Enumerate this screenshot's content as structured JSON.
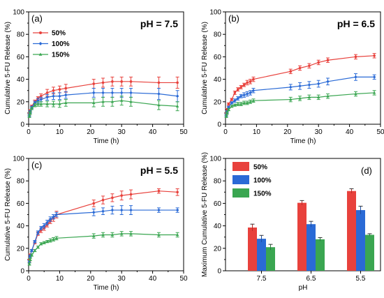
{
  "chart_data": [
    {
      "id": "a",
      "type": "line",
      "panel_label": "(a)",
      "title": "pH = 7.5",
      "xlabel": "Time (h)",
      "ylabel": "Cumulative 5-FU Release (%)",
      "xlim": [
        0,
        50
      ],
      "ylim": [
        0,
        100
      ],
      "xticks": [
        0,
        10,
        20,
        30,
        40,
        50
      ],
      "yticks": [
        0,
        20,
        40,
        60,
        80,
        100
      ],
      "legend": "top-left",
      "x": [
        0.25,
        0.5,
        1,
        2,
        3,
        4,
        6,
        8,
        10,
        12,
        21,
        24,
        27,
        30,
        33,
        42,
        48
      ],
      "series": [
        {
          "name": "50%",
          "color": "#e8413c",
          "values": [
            9,
            12,
            16,
            20,
            23,
            25,
            28,
            30,
            31,
            32,
            36,
            37,
            38,
            38,
            38,
            37,
            37
          ],
          "err": [
            1,
            1,
            1,
            1.5,
            1.5,
            2,
            3,
            3,
            3,
            3.5,
            4,
            4,
            4,
            4,
            4,
            5,
            5
          ]
        },
        {
          "name": "100%",
          "color": "#2a6ad6",
          "values": [
            8,
            11,
            15,
            19,
            21,
            22,
            24,
            25,
            25,
            26,
            28,
            28,
            28,
            28,
            28,
            27,
            25
          ],
          "err": [
            1,
            1,
            1,
            1.5,
            2,
            2,
            2.5,
            3,
            3,
            3,
            4,
            4,
            4,
            4,
            4,
            5,
            5
          ]
        },
        {
          "name": "150%",
          "color": "#3aa651",
          "values": [
            7,
            10,
            14,
            17,
            18,
            18,
            18,
            18,
            18,
            19,
            19,
            20,
            20,
            21,
            20,
            17,
            16
          ],
          "err": [
            1,
            1,
            1,
            1.5,
            2,
            2,
            2.5,
            2.5,
            3,
            3,
            3.5,
            4,
            4,
            4,
            4,
            4,
            4
          ]
        }
      ]
    },
    {
      "id": "b",
      "type": "line",
      "panel_label": "(b)",
      "title": "pH = 6.5",
      "xlabel": "Time (h)",
      "ylabel": "Cumulative 5-FU Release (%)",
      "xlim": [
        0,
        50
      ],
      "ylim": [
        0,
        100
      ],
      "xticks": [
        0,
        10,
        20,
        30,
        40,
        50
      ],
      "yticks": [
        0,
        20,
        40,
        60,
        80,
        100
      ],
      "x": [
        0.25,
        0.5,
        1,
        2,
        3,
        4,
        5,
        6,
        7,
        8,
        9,
        21,
        24,
        27,
        30,
        33,
        42,
        48
      ],
      "series": [
        {
          "name": "50%",
          "color": "#e8413c",
          "values": [
            9,
            13,
            18,
            22,
            28,
            31,
            33,
            35,
            37,
            38,
            40,
            47,
            50,
            52,
            55,
            57,
            60,
            61
          ],
          "err": [
            1,
            1,
            1,
            1,
            1.5,
            1.5,
            1.5,
            1.5,
            2,
            2,
            2,
            2,
            2,
            2,
            2,
            2,
            2,
            2
          ]
        },
        {
          "name": "100%",
          "color": "#2a6ad6",
          "values": [
            8,
            11,
            15,
            19,
            21,
            23,
            25,
            26,
            27,
            28,
            30,
            33,
            34,
            35,
            36,
            38,
            42,
            42
          ],
          "err": [
            1,
            1,
            1,
            1,
            1.5,
            1.5,
            1.5,
            2,
            2,
            2,
            2,
            2.5,
            3,
            3,
            3,
            3,
            3,
            2
          ]
        },
        {
          "name": "150%",
          "color": "#3aa651",
          "values": [
            7,
            10,
            13,
            16,
            17,
            18,
            18,
            19,
            19,
            20,
            21,
            22,
            23,
            24,
            24,
            25,
            27,
            28
          ],
          "err": [
            1,
            1,
            1,
            1,
            1,
            1.5,
            1.5,
            1.5,
            1.5,
            1.5,
            1.5,
            2,
            2,
            2,
            2,
            2,
            2,
            2
          ]
        }
      ]
    },
    {
      "id": "c",
      "type": "line",
      "panel_label": "(c)",
      "title": "pH = 5.5",
      "xlabel": "Time (h)",
      "ylabel": "Cumulative 5-FU Release (%)",
      "xlim": [
        0,
        50
      ],
      "ylim": [
        0,
        100
      ],
      "xticks": [
        0,
        10,
        20,
        30,
        40,
        50
      ],
      "yticks": [
        0,
        20,
        40,
        60,
        80,
        100
      ],
      "x": [
        0.25,
        0.5,
        1,
        2,
        3,
        4,
        5,
        6,
        7,
        8,
        9,
        21,
        24,
        27,
        30,
        33,
        42,
        48
      ],
      "series": [
        {
          "name": "50%",
          "color": "#e8413c",
          "values": [
            9,
            14,
            18,
            25,
            33,
            36,
            38,
            41,
            44,
            47,
            50,
            60,
            63,
            65,
            67,
            68,
            71,
            70
          ],
          "err": [
            1,
            1,
            1,
            1,
            1.5,
            2,
            2,
            2,
            2,
            3,
            3,
            3,
            3.5,
            3.5,
            4,
            4,
            2,
            3
          ]
        },
        {
          "name": "100%",
          "color": "#2a6ad6",
          "values": [
            8,
            13,
            18,
            26,
            34,
            38,
            40,
            43,
            46,
            48,
            50,
            52,
            53,
            54,
            54,
            54,
            54,
            54
          ],
          "err": [
            1,
            1,
            1,
            1,
            1.5,
            1.5,
            2,
            2,
            2,
            2,
            2,
            3,
            3,
            3.5,
            4,
            4,
            2,
            2
          ]
        },
        {
          "name": "150%",
          "color": "#3aa651",
          "values": [
            6,
            10,
            14,
            18,
            21,
            24,
            25,
            26,
            27,
            28,
            29,
            31,
            32,
            32,
            33,
            33,
            32,
            32
          ],
          "err": [
            1,
            1,
            1,
            1,
            1,
            1,
            1,
            1,
            1.5,
            1.5,
            1.5,
            2,
            2,
            2,
            2,
            2,
            2,
            2
          ]
        }
      ]
    },
    {
      "id": "d",
      "type": "bar",
      "panel_label": "(d)",
      "xlabel": "pH",
      "ylabel": "Maximum Cumulative 5-FU Release (%)",
      "ylim": [
        0,
        100
      ],
      "yticks": [
        0,
        20,
        40,
        60,
        80,
        100
      ],
      "categories": [
        "7.5",
        "6.5",
        "5.5"
      ],
      "legend": "top-left",
      "series": [
        {
          "name": "50%",
          "color": "#e8413c",
          "values": [
            38.5,
            60.5,
            71
          ],
          "err": [
            3,
            2,
            2
          ]
        },
        {
          "name": "100%",
          "color": "#2a6ad6",
          "values": [
            28.5,
            41.5,
            54
          ],
          "err": [
            3,
            2.5,
            3.5
          ]
        },
        {
          "name": "150%",
          "color": "#3aa651",
          "values": [
            21,
            28,
            32
          ],
          "err": [
            2.5,
            1.5,
            1
          ]
        }
      ]
    }
  ]
}
